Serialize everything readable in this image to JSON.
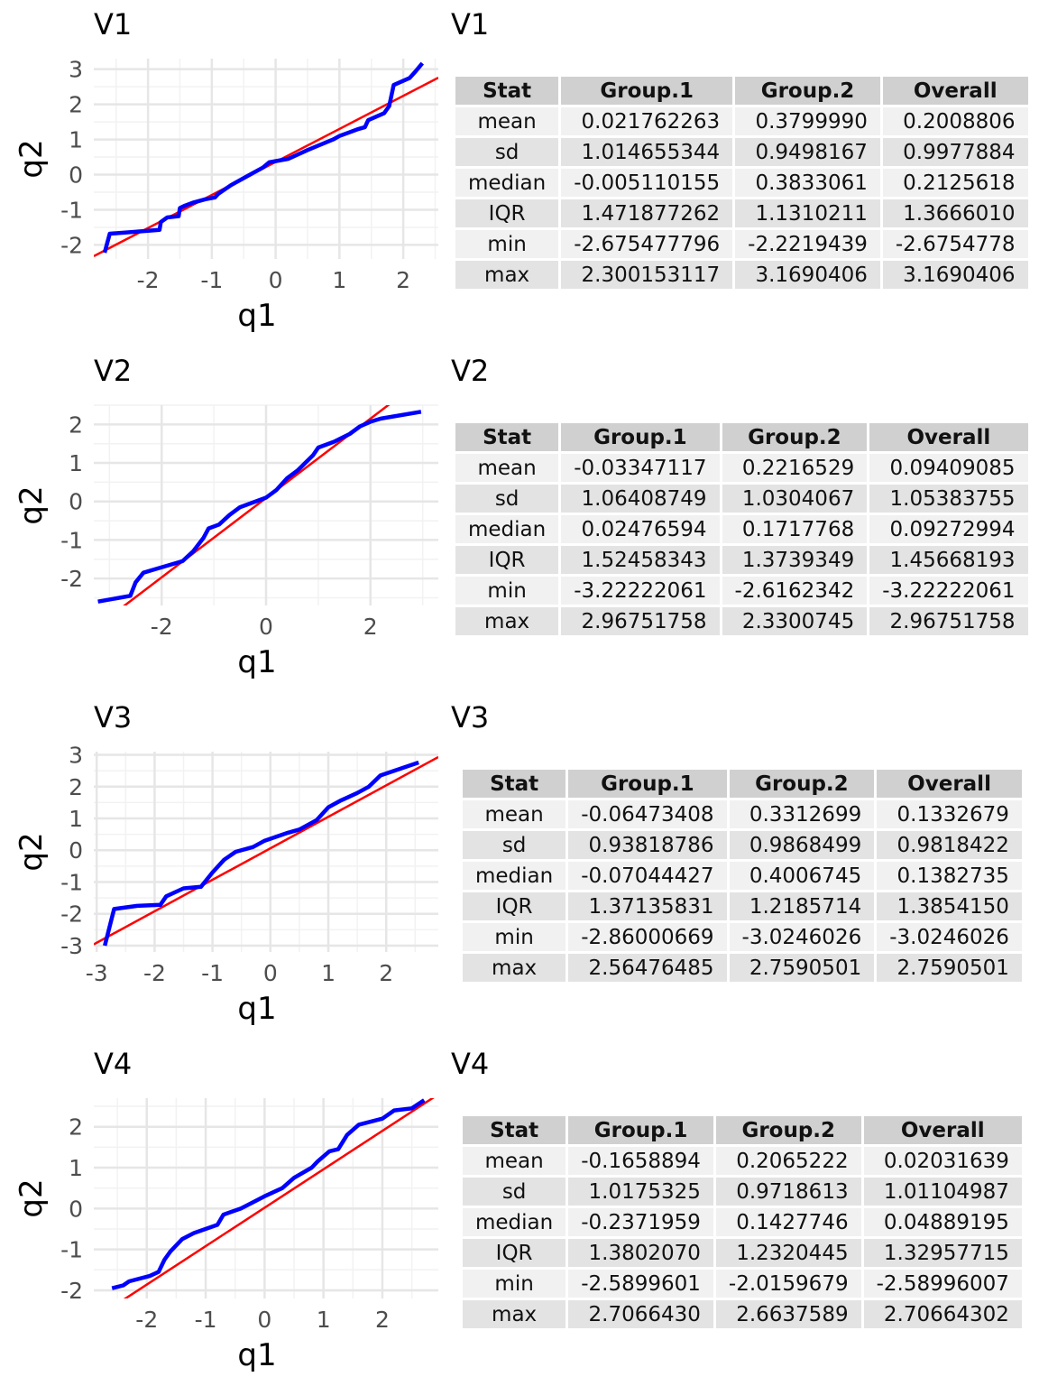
{
  "panels": [
    {
      "title": "V1",
      "table_title": "V1",
      "headers": [
        "Stat",
        "Group.1",
        "Group.2",
        "Overall"
      ],
      "rows": [
        [
          "mean",
          "0.021762263",
          "0.3799990",
          "0.2008806"
        ],
        [
          "sd",
          "1.014655344",
          "0.9498167",
          "0.9977884"
        ],
        [
          "median",
          "-0.005110155",
          "0.3833061",
          "0.2125618"
        ],
        [
          "IQR",
          "1.471877262",
          "1.1310211",
          "1.3666010"
        ],
        [
          "min",
          "-2.675477796",
          "-2.2219439",
          "-2.6754778"
        ],
        [
          "max",
          "2.300153117",
          "3.1690406",
          "3.1690406"
        ]
      ]
    },
    {
      "title": "V2",
      "table_title": "V2",
      "headers": [
        "Stat",
        "Group.1",
        "Group.2",
        "Overall"
      ],
      "rows": [
        [
          "mean",
          "-0.03347117",
          "0.2216529",
          "0.09409085"
        ],
        [
          "sd",
          "1.06408749",
          "1.0304067",
          "1.05383755"
        ],
        [
          "median",
          "0.02476594",
          "0.1717768",
          "0.09272994"
        ],
        [
          "IQR",
          "1.52458343",
          "1.3739349",
          "1.45668193"
        ],
        [
          "min",
          "-3.22222061",
          "-2.6162342",
          "-3.22222061"
        ],
        [
          "max",
          "2.96751758",
          "2.3300745",
          "2.96751758"
        ]
      ]
    },
    {
      "title": "V3",
      "table_title": "V3",
      "headers": [
        "Stat",
        "Group.1",
        "Group.2",
        "Overall"
      ],
      "rows": [
        [
          "mean",
          "-0.06473408",
          "0.3312699",
          "0.1332679"
        ],
        [
          "sd",
          "0.93818786",
          "0.9868499",
          "0.9818422"
        ],
        [
          "median",
          "-0.07044427",
          "0.4006745",
          "0.1382735"
        ],
        [
          "IQR",
          "1.37135831",
          "1.2185714",
          "1.3854150"
        ],
        [
          "min",
          "-2.86000669",
          "-3.0246026",
          "-3.0246026"
        ],
        [
          "max",
          "2.56476485",
          "2.7590501",
          "2.7590501"
        ]
      ]
    },
    {
      "title": "V4",
      "table_title": "V4",
      "headers": [
        "Stat",
        "Group.1",
        "Group.2",
        "Overall"
      ],
      "rows": [
        [
          "mean",
          "-0.1658894",
          "0.2065222",
          "0.02031639"
        ],
        [
          "sd",
          "1.0175325",
          "0.9718613",
          "1.01104987"
        ],
        [
          "median",
          "-0.2371959",
          "0.1427746",
          "0.04889195"
        ],
        [
          "IQR",
          "1.3802070",
          "1.2320445",
          "1.32957715"
        ],
        [
          "min",
          "-2.5899601",
          "-2.0159679",
          "-2.58996007"
        ],
        [
          "max",
          "2.7066430",
          "2.6637589",
          "2.70664302"
        ]
      ]
    }
  ],
  "chart_data": [
    {
      "type": "line",
      "title": "V1",
      "xlabel": "q1",
      "ylabel": "q2",
      "xlim": [
        -2.85,
        2.55
      ],
      "ylim": [
        -2.4,
        3.3
      ],
      "xticks": [
        -2,
        -1,
        0,
        1,
        2
      ],
      "yticks": [
        -2,
        -1,
        0,
        1,
        2,
        3
      ],
      "grid": true,
      "reference_line": {
        "intercept": 0.36,
        "slope": 0.94,
        "color": "#ff0000"
      },
      "series": [
        {
          "color": "#0000ff",
          "x": [
            -2.68,
            -2.6,
            -2.0,
            -1.82,
            -1.8,
            -1.7,
            -1.52,
            -1.5,
            -1.42,
            -1.3,
            -1.1,
            -0.95,
            -0.9,
            -0.7,
            -0.5,
            -0.2,
            -0.1,
            0.2,
            0.5,
            0.7,
            0.9,
            1.0,
            1.3,
            1.4,
            1.45,
            1.7,
            1.78,
            1.85,
            2.1,
            2.2,
            2.3
          ],
          "y": [
            -2.22,
            -1.68,
            -1.6,
            -1.57,
            -1.35,
            -1.22,
            -1.18,
            -0.95,
            -0.88,
            -0.8,
            -0.7,
            -0.65,
            -0.55,
            -0.3,
            -0.1,
            0.2,
            0.35,
            0.45,
            0.7,
            0.85,
            1.0,
            1.1,
            1.3,
            1.35,
            1.55,
            1.75,
            1.95,
            2.55,
            2.75,
            2.95,
            3.17
          ]
        }
      ]
    },
    {
      "type": "line",
      "title": "V2",
      "xlabel": "q1",
      "ylabel": "q2",
      "xlim": [
        -3.3,
        3.3
      ],
      "ylim": [
        -2.7,
        2.5
      ],
      "xticks": [
        -2,
        0,
        2
      ],
      "yticks": [
        -2,
        -1,
        0,
        1,
        2
      ],
      "grid": true,
      "reference_line": {
        "intercept": 0.09,
        "slope": 1.03,
        "color": "#ff0000"
      },
      "series": [
        {
          "color": "#0000ff",
          "x": [
            -3.22,
            -2.6,
            -2.5,
            -2.35,
            -2.1,
            -1.6,
            -1.4,
            -1.2,
            -1.1,
            -0.9,
            -0.7,
            -0.5,
            -0.3,
            0.0,
            0.2,
            0.4,
            0.6,
            0.9,
            1.0,
            1.3,
            1.6,
            1.8,
            2.0,
            2.2,
            2.97
          ],
          "y": [
            -2.6,
            -2.45,
            -2.1,
            -1.85,
            -1.75,
            -1.55,
            -1.3,
            -0.95,
            -0.7,
            -0.6,
            -0.35,
            -0.15,
            -0.05,
            0.1,
            0.3,
            0.6,
            0.8,
            1.2,
            1.4,
            1.55,
            1.75,
            1.95,
            2.07,
            2.15,
            2.33
          ]
        }
      ]
    },
    {
      "type": "line",
      "title": "V3",
      "xlabel": "q1",
      "ylabel": "q2",
      "xlim": [
        -3.05,
        2.9
      ],
      "ylim": [
        -3.2,
        3.1
      ],
      "xticks": [
        -3,
        -2,
        -1,
        0,
        1,
        2
      ],
      "yticks": [
        -3,
        -2,
        -1,
        0,
        1,
        2,
        3
      ],
      "grid": true,
      "reference_line": {
        "intercept": 0.06,
        "slope": 0.99,
        "color": "#ff0000"
      },
      "series": [
        {
          "color": "#0000ff",
          "x": [
            -2.86,
            -2.7,
            -2.3,
            -1.9,
            -1.8,
            -1.5,
            -1.2,
            -1.0,
            -0.8,
            -0.6,
            -0.3,
            -0.1,
            0.3,
            0.5,
            0.8,
            1.0,
            1.2,
            1.5,
            1.7,
            1.9,
            2.56
          ],
          "y": [
            -3.0,
            -1.85,
            -1.75,
            -1.72,
            -1.45,
            -1.2,
            -1.15,
            -0.7,
            -0.3,
            -0.05,
            0.1,
            0.3,
            0.55,
            0.65,
            0.95,
            1.35,
            1.55,
            1.8,
            2.0,
            2.35,
            2.76
          ]
        }
      ]
    },
    {
      "type": "line",
      "title": "V4",
      "xlabel": "q1",
      "ylabel": "q2",
      "xlim": [
        -2.9,
        2.95
      ],
      "ylim": [
        -2.2,
        2.7
      ],
      "xticks": [
        -2,
        -1,
        0,
        1,
        2
      ],
      "yticks": [
        -2,
        -1,
        0,
        1,
        2
      ],
      "grid": true,
      "reference_line": {
        "intercept": 0.02,
        "slope": 0.94,
        "color": "#ff0000"
      },
      "series": [
        {
          "color": "#0000ff",
          "x": [
            -2.59,
            -2.4,
            -2.3,
            -1.95,
            -1.8,
            -1.7,
            -1.6,
            -1.4,
            -1.2,
            -0.8,
            -0.7,
            -0.4,
            -0.2,
            0.0,
            0.3,
            0.5,
            0.8,
            0.9,
            1.1,
            1.25,
            1.4,
            1.6,
            2.0,
            2.2,
            2.5,
            2.71
          ],
          "y": [
            -1.95,
            -1.88,
            -1.78,
            -1.65,
            -1.55,
            -1.25,
            -1.05,
            -0.75,
            -0.6,
            -0.4,
            -0.15,
            0.0,
            0.15,
            0.3,
            0.5,
            0.75,
            1.0,
            1.15,
            1.4,
            1.45,
            1.8,
            2.05,
            2.2,
            2.4,
            2.45,
            2.65
          ]
        }
      ]
    }
  ]
}
